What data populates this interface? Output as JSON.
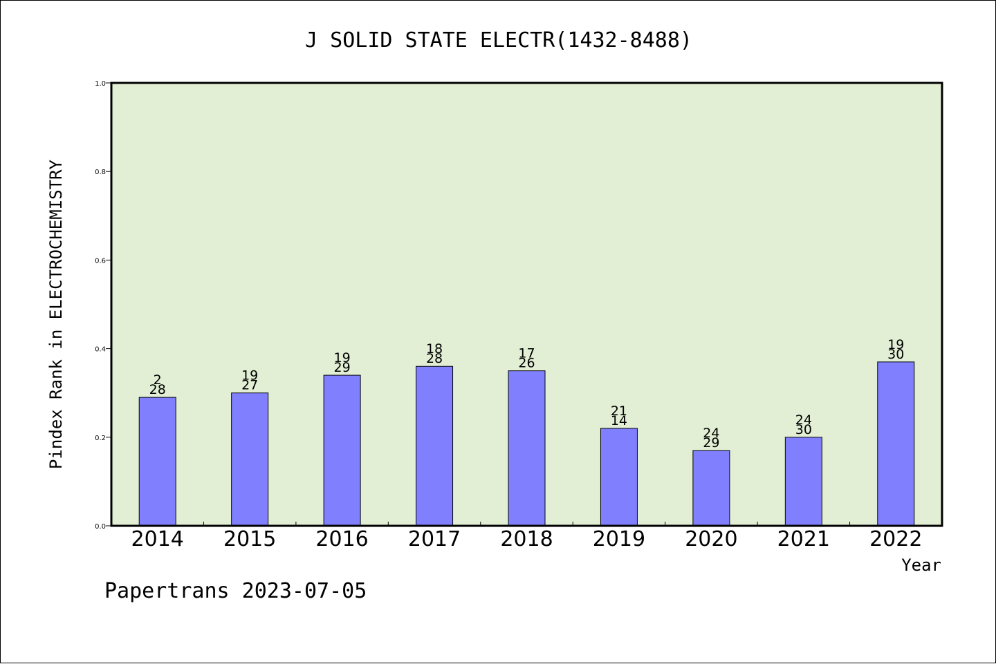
{
  "chart_data": {
    "type": "bar",
    "title": "J SOLID STATE ELECTR(1432-8488)",
    "xlabel": "Year",
    "ylabel": "Pindex Rank in ELECTROCHEMISTRY",
    "ylim": [
      0,
      1.0
    ],
    "yticks": [
      "0.0",
      "0.2",
      "0.4",
      "0.6",
      "0.8",
      "1.0"
    ],
    "categories": [
      "2014",
      "2015",
      "2016",
      "2017",
      "2018",
      "2019",
      "2020",
      "2021",
      "2022"
    ],
    "values": [
      0.29,
      0.3,
      0.34,
      0.36,
      0.35,
      0.22,
      0.17,
      0.2,
      0.37
    ],
    "labels_top": [
      "2",
      "19",
      "19",
      "18",
      "17",
      "21",
      "24",
      "24",
      "19"
    ],
    "labels_bottom": [
      "28",
      "27",
      "29",
      "28",
      "26",
      "14",
      "29",
      "30",
      "30"
    ],
    "grid": false,
    "colors": {
      "bar": "#8080ff",
      "plot_background": "#e2efd5",
      "axis": "#000000"
    }
  },
  "footer": {
    "watermark": "Papertrans 2023-07-05"
  }
}
